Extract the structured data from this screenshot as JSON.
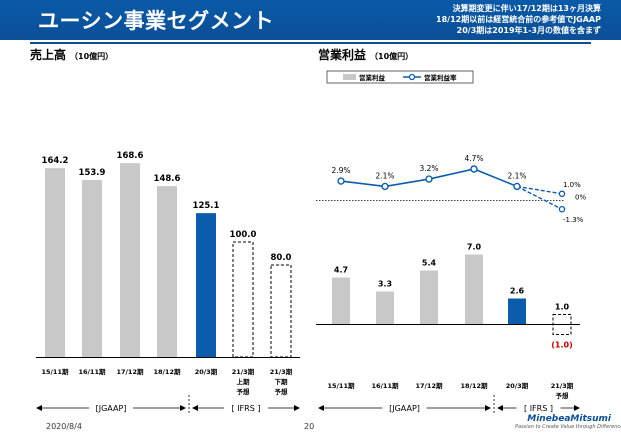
{
  "header": {
    "title": "ユーシン事業セグメント",
    "notes": [
      "決算期変更に伴い17/12期は13ヶ月決算",
      "18/12期以前は経営統合前の参考値でJGAAP",
      "20/3期は2019年1-3月の数値を含まず"
    ],
    "color": "#0b4f96"
  },
  "left_title": {
    "main": "売上高",
    "unit": "（10億円）"
  },
  "right_title": {
    "main": "営業利益",
    "unit": "（10億円）"
  },
  "footer": {
    "date": "2020/8/4",
    "page": "20"
  },
  "logo": {
    "name": "MinebeaMitsumi",
    "tagline": "Passion to Create Value through Difference"
  },
  "chart_data": [
    {
      "type": "bar",
      "title": "売上高",
      "unit": "（10億円）",
      "categories": [
        "15/11期",
        "16/11期",
        "17/12期",
        "18/12期",
        "20/3期",
        "21/3期",
        "21/3期"
      ],
      "category_sublabels": [
        "",
        "",
        "",
        "",
        "",
        "上期予想",
        "下期予想"
      ],
      "values": [
        164.2,
        153.9,
        168.6,
        148.6,
        125.1,
        100.0,
        80.0
      ],
      "value_labels": [
        "164.2",
        "153.9",
        "168.6",
        "148.6",
        "125.1",
        "100.0",
        "80.0"
      ],
      "styles": [
        "actual-gray",
        "actual-gray",
        "actual-gray",
        "actual-gray",
        "actual-blue",
        "forecast",
        "forecast"
      ],
      "groups": [
        {
          "label": "[JGAAP]",
          "from": 0,
          "to": 3
        },
        {
          "label": "[ IFRS ]",
          "from": 4,
          "to": 6
        }
      ],
      "ylim": [
        0,
        180
      ],
      "colors": {
        "gray": "#c8c8c8",
        "blue": "#0b5cad"
      }
    },
    {
      "type": "bar+line",
      "title": "営業利益",
      "unit": "（10億円）",
      "legend": {
        "bar": "営業利益",
        "line": "営業利益率"
      },
      "categories": [
        "15/11期",
        "16/11期",
        "17/12期",
        "18/12期",
        "20/3期",
        "21/3期"
      ],
      "category_sublabels": [
        "",
        "",
        "",
        "",
        "",
        "予想"
      ],
      "bars": {
        "values": [
          4.7,
          3.3,
          5.4,
          7.0,
          2.6,
          1.0
        ],
        "value_labels": [
          "4.7",
          "3.3",
          "5.4",
          "7.0",
          "2.6",
          "1.0"
        ],
        "styles": [
          "actual-gray",
          "actual-gray",
          "actual-gray",
          "actual-gray",
          "actual-blue",
          "forecast"
        ],
        "forecast_alt": {
          "value": -1.0,
          "label": "(1.0)",
          "color": "#cc0000"
        }
      },
      "line": {
        "values": [
          2.9,
          2.1,
          3.2,
          4.7,
          2.1
        ],
        "value_labels": [
          "2.9%",
          "2.1%",
          "3.2%",
          "4.7%",
          "2.1%"
        ],
        "forecast": [
          {
            "value": 1.0,
            "label": "1.0%"
          },
          {
            "value": -1.3,
            "label": "-1.3%"
          }
        ],
        "zero_label": "0%",
        "color": "#0b5cad"
      },
      "groups": [
        {
          "label": "[JGAAP]",
          "from": 0,
          "to": 3
        },
        {
          "label": "[ IFRS ]",
          "from": 4,
          "to": 5
        }
      ],
      "colors": {
        "gray": "#c8c8c8",
        "blue": "#0b5cad"
      }
    }
  ]
}
